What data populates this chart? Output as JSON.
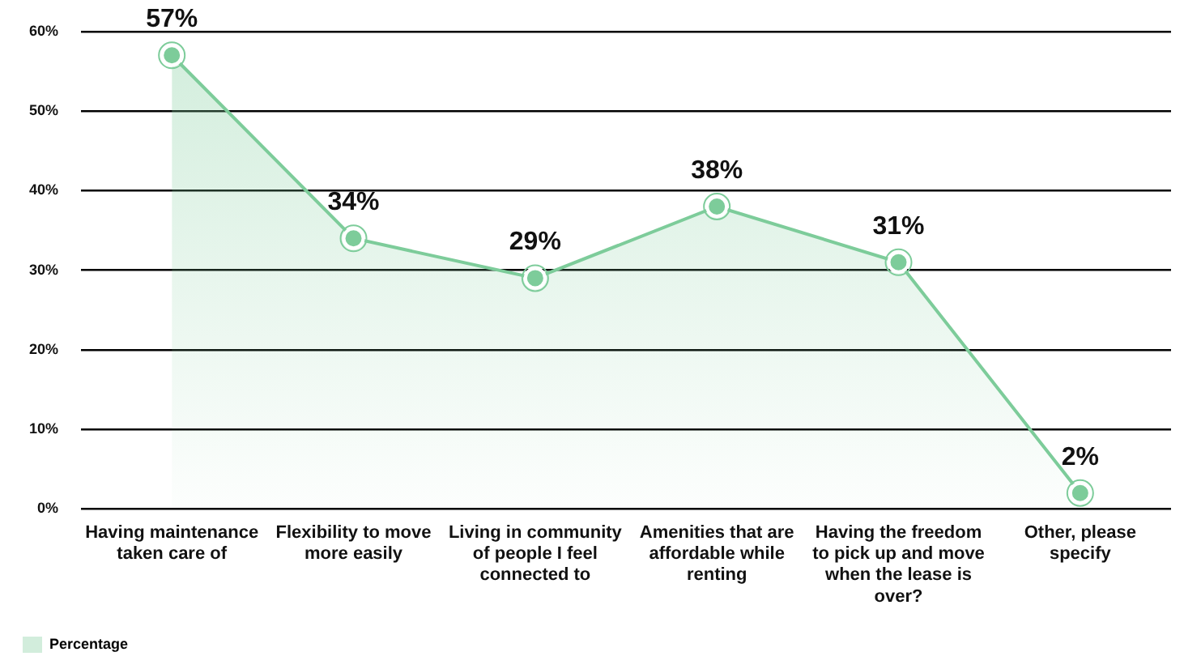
{
  "chart_data": {
    "type": "area",
    "categories": [
      "Having maintenance taken care of",
      "Flexibility to move more easily",
      "Living in community of people I feel connected to",
      "Amenities that are affordable while renting",
      "Having the freedom to pick up and move when the lease is over?",
      "Other, please specify"
    ],
    "series": [
      {
        "name": "Percentage",
        "color": "#7dcc9a",
        "values": [
          57,
          34,
          29,
          38,
          31,
          2
        ],
        "value_labels": [
          "57%",
          "34%",
          "29%",
          "38%",
          "31%",
          "2%"
        ]
      }
    ],
    "ylim": [
      0,
      60
    ],
    "yticks": [
      {
        "value": 0,
        "label": "0%"
      },
      {
        "value": 10,
        "label": "10%"
      },
      {
        "value": 20,
        "label": "20%"
      },
      {
        "value": 30,
        "label": "30%"
      },
      {
        "value": 40,
        "label": "40%"
      },
      {
        "value": 50,
        "label": "50%"
      },
      {
        "value": 60,
        "label": "60%"
      }
    ],
    "grid": "y",
    "legend": "bottom left",
    "marker": "circle"
  }
}
